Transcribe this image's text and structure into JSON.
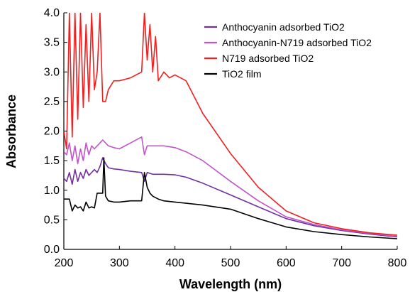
{
  "chart_data": {
    "type": "line",
    "title": "",
    "xlabel": "Wavelength (nm)",
    "ylabel": "Absorbance",
    "xlim": [
      200,
      800
    ],
    "ylim": [
      0,
      4.0
    ],
    "xticks": [
      200,
      300,
      400,
      500,
      600,
      700,
      800
    ],
    "yticks": [
      "0.0",
      "0.5",
      "1.0",
      "1.5",
      "2.0",
      "2.5",
      "3.0",
      "3.5",
      "4.0"
    ],
    "grid": false,
    "legend_position": "top-right",
    "series": [
      {
        "name": "Anthocyanin adsorbed TiO2",
        "color": "#7030a0",
        "x": [
          200,
          205,
          210,
          215,
          220,
          225,
          230,
          235,
          240,
          245,
          250,
          255,
          260,
          265,
          270,
          275,
          280,
          290,
          300,
          320,
          340,
          345,
          350,
          360,
          380,
          400,
          420,
          450,
          500,
          550,
          600,
          650,
          700,
          750,
          800
        ],
        "y": [
          1.2,
          1.15,
          1.3,
          1.1,
          1.35,
          1.15,
          1.3,
          1.2,
          1.35,
          1.25,
          1.3,
          1.35,
          1.3,
          1.4,
          1.55,
          1.45,
          1.38,
          1.36,
          1.35,
          1.32,
          1.3,
          1.15,
          1.3,
          1.27,
          1.27,
          1.26,
          1.22,
          1.12,
          0.92,
          0.72,
          0.52,
          0.4,
          0.32,
          0.26,
          0.21
        ]
      },
      {
        "name": "Anthocyanin-N719 adsorbed TiO2",
        "color": "#c055c8",
        "x": [
          200,
          205,
          210,
          215,
          220,
          225,
          230,
          235,
          240,
          245,
          250,
          255,
          260,
          265,
          270,
          275,
          280,
          290,
          300,
          320,
          340,
          345,
          350,
          360,
          380,
          400,
          420,
          450,
          500,
          550,
          600,
          650,
          700,
          750,
          800
        ],
        "y": [
          1.65,
          1.6,
          1.8,
          1.5,
          1.75,
          1.45,
          1.7,
          1.5,
          1.8,
          1.6,
          1.75,
          1.7,
          1.75,
          1.8,
          1.85,
          1.8,
          1.75,
          1.72,
          1.7,
          1.8,
          1.9,
          1.6,
          1.75,
          1.75,
          1.75,
          1.72,
          1.65,
          1.5,
          1.15,
          0.82,
          0.55,
          0.42,
          0.33,
          0.27,
          0.22
        ]
      },
      {
        "name": "N719 adsorbed TiO2",
        "color": "#ee2020",
        "x": [
          200,
          205,
          210,
          215,
          220,
          225,
          230,
          235,
          240,
          245,
          250,
          255,
          260,
          265,
          270,
          275,
          280,
          290,
          300,
          320,
          340,
          345,
          350,
          355,
          360,
          365,
          370,
          380,
          390,
          400,
          410,
          420,
          450,
          500,
          550,
          600,
          650,
          700,
          750,
          800
        ],
        "y": [
          2.0,
          1.7,
          4.0,
          1.9,
          4.0,
          2.2,
          4.0,
          2.4,
          3.8,
          2.5,
          4.0,
          2.7,
          3.0,
          4.0,
          2.5,
          2.5,
          2.7,
          2.85,
          2.85,
          2.9,
          3.0,
          4.0,
          3.2,
          3.8,
          3.0,
          3.6,
          2.85,
          3.0,
          2.9,
          2.95,
          2.9,
          2.85,
          2.3,
          1.62,
          1.05,
          0.65,
          0.45,
          0.35,
          0.28,
          0.24
        ]
      },
      {
        "name": "TiO2 film",
        "color": "#000000",
        "x": [
          200,
          210,
          215,
          220,
          225,
          230,
          235,
          240,
          245,
          250,
          255,
          260,
          265,
          270,
          272,
          275,
          280,
          290,
          300,
          320,
          340,
          345,
          350,
          355,
          360,
          370,
          380,
          400,
          420,
          450,
          500,
          550,
          600,
          650,
          700,
          750,
          800
        ],
        "y": [
          0.85,
          0.85,
          0.65,
          0.75,
          0.7,
          0.72,
          0.65,
          0.8,
          0.7,
          0.72,
          0.7,
          0.95,
          0.95,
          0.95,
          1.55,
          0.9,
          0.82,
          0.8,
          0.8,
          0.82,
          0.82,
          1.3,
          1.05,
          0.95,
          0.9,
          0.85,
          0.82,
          0.8,
          0.78,
          0.75,
          0.68,
          0.52,
          0.38,
          0.3,
          0.25,
          0.21,
          0.18
        ]
      }
    ]
  }
}
